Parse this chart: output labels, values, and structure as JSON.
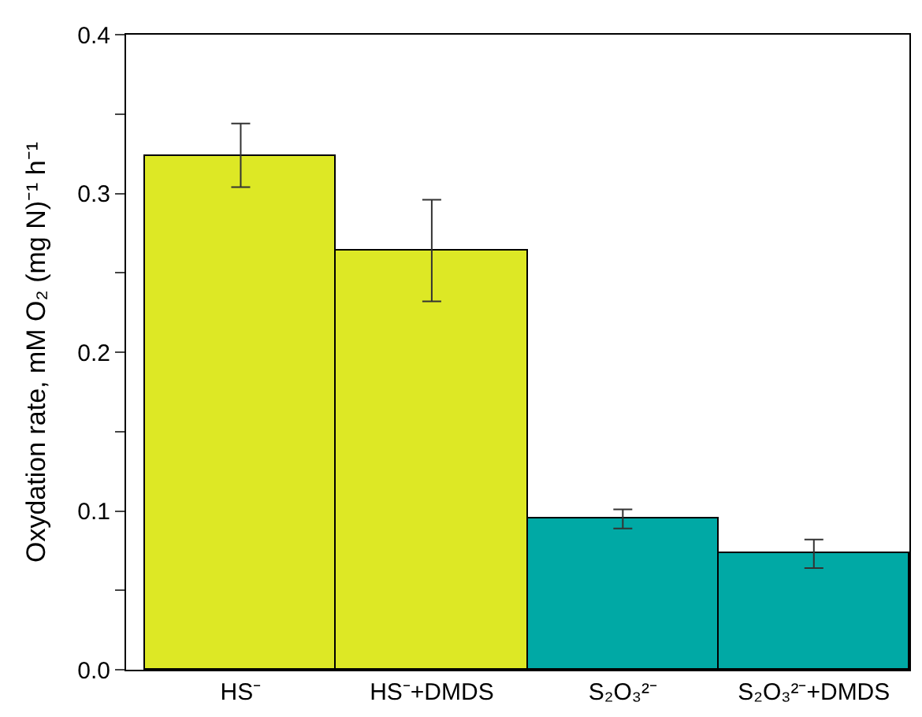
{
  "chart_data": {
    "type": "bar",
    "ylabel": "Oxydation rate, mM O₂ (mg N)⁻¹ h⁻¹",
    "categories": [
      "HS⁻",
      "HS⁻+DMDS",
      "S₂O₃²⁻",
      "S₂O₃²⁻+DMDS"
    ],
    "values": [
      0.324,
      0.264,
      0.095,
      0.073
    ],
    "errors": [
      0.02,
      0.032,
      0.006,
      0.009
    ],
    "colors": [
      "#dde825",
      "#dde825",
      "#00a9a5",
      "#00a9a5"
    ],
    "ylim": [
      0,
      0.4
    ],
    "yticks": [
      {
        "value": 0,
        "label": "0.0"
      },
      {
        "value": 0.05,
        "label": null
      },
      0.1,
      {
        "value": 0.15,
        "label": null
      },
      0.2,
      {
        "value": 0.25,
        "label": null
      },
      0.3,
      {
        "value": 0.35,
        "label": null
      },
      0.4
    ]
  }
}
